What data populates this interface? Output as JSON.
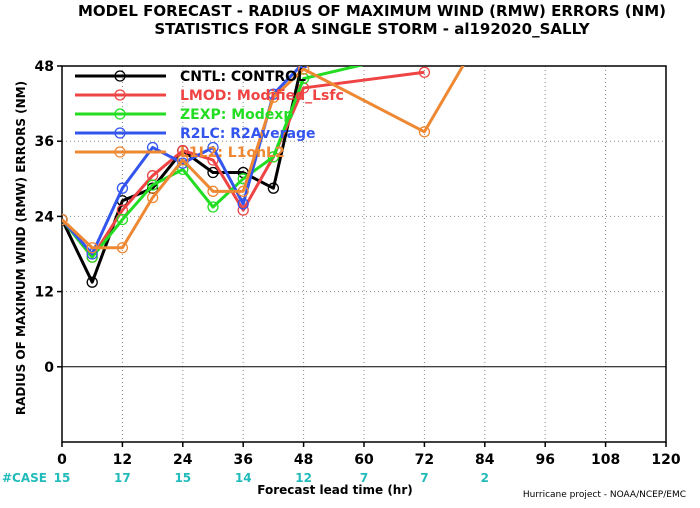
{
  "chart_data": {
    "type": "line",
    "title": "MODEL FORECAST - RADIUS OF MAXIMUM WIND (RMW) ERRORS (NM)",
    "subtitle": "STATISTICS FOR A SINGLE STORM - al192020_SALLY",
    "xlabel": "Forecast lead time (hr)",
    "ylabel": "RADIUS OF MAXIMUM WIND (RMW) ERRORS (NM)",
    "xlim": [
      0,
      120
    ],
    "ylim": [
      -12,
      48
    ],
    "xticks": [
      "0",
      "12",
      "24",
      "36",
      "48",
      "60",
      "72",
      "84",
      "96",
      "108",
      "120"
    ],
    "xtick_values": [
      0,
      12,
      24,
      36,
      48,
      60,
      72,
      84,
      96,
      108,
      120
    ],
    "yticks": [
      "0",
      "12",
      "24",
      "36",
      "48"
    ],
    "ytick_values": [
      0,
      12,
      24,
      36,
      48
    ],
    "grid": true,
    "legend_position": "top-left",
    "series": [
      {
        "name": "CNTL: CONTROL",
        "color": "#000000",
        "x": [
          0,
          6,
          12,
          18,
          24,
          30,
          36,
          42,
          48,
          72
        ],
        "y": [
          23.5,
          13.5,
          26.5,
          28.5,
          34.5,
          31.0,
          31.0,
          28.5,
          49.5,
          51.5
        ]
      },
      {
        "name": "LMOD: Modified_Lsfc",
        "color": "#ee4444",
        "x": [
          0,
          6,
          12,
          18,
          24,
          30,
          36,
          42,
          48,
          72
        ],
        "y": [
          23.5,
          17.5,
          25.0,
          30.5,
          34.5,
          33.0,
          25.0,
          33.5,
          44.5,
          47.0
        ]
      },
      {
        "name": "ZEXP: Modexp",
        "color": "#22dd22",
        "x": [
          0,
          6,
          12,
          18,
          24,
          30,
          36,
          42,
          48,
          72
        ],
        "y": [
          23.5,
          17.5,
          23.5,
          29.0,
          31.5,
          25.5,
          30.0,
          33.5,
          46.0,
          50.5
        ]
      },
      {
        "name": "R2LC: R2Average",
        "color": "#3355ee",
        "x": [
          0,
          6,
          12,
          18,
          24,
          30,
          36,
          42,
          48,
          72
        ],
        "y": [
          23.5,
          18.0,
          28.5,
          35.0,
          32.5,
          35.0,
          26.0,
          43.5,
          48.5,
          54.0
        ]
      },
      {
        "name": "L1L2: L1onL2",
        "color": "#ee8833",
        "x": [
          0,
          6,
          12,
          18,
          24,
          30,
          36,
          42,
          48,
          72,
          84
        ],
        "y": [
          23.5,
          19.0,
          19.0,
          27.0,
          33.0,
          28.0,
          28.0,
          43.0,
          47.5,
          37.5,
          54.0
        ]
      }
    ],
    "case_label": "#CASE",
    "cases": [
      "15",
      "17",
      "15",
      "14",
      "12",
      "7",
      "7",
      "2"
    ],
    "case_x": [
      0,
      12,
      24,
      36,
      48,
      60,
      72,
      84
    ],
    "credit": "Hurricane project - NOAA/NCEP/EMC"
  },
  "colors": {
    "case_label": "#22bbbb",
    "case_values": "#22bbbb",
    "grid": "#888888"
  }
}
